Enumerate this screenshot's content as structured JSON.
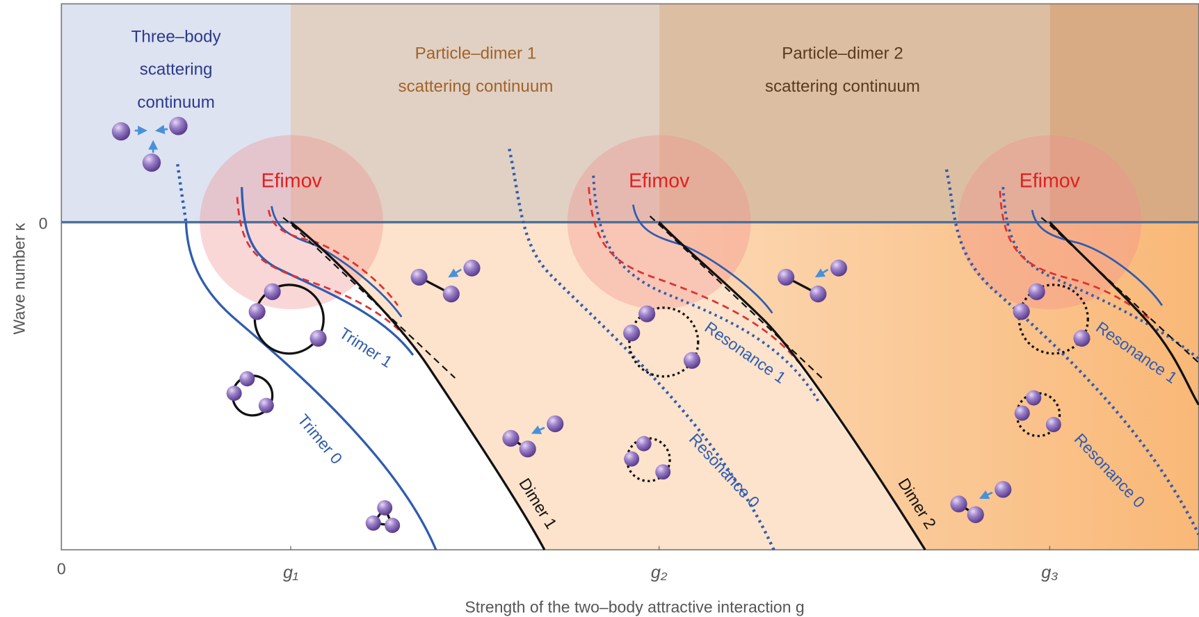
{
  "regions": [
    {
      "lines": [
        "Three–body",
        "scattering",
        "continuum"
      ]
    },
    {
      "lines": [
        "Particle–dimer 1",
        "scattering continuum"
      ]
    },
    {
      "lines": [
        "Particle–dimer 2",
        "scattering continuum"
      ]
    }
  ],
  "efimov_labels": [
    "Efimov",
    "Efimov",
    "Efimov"
  ],
  "curve_labels": {
    "trimer_1": "Trimer 1",
    "trimer_0": "Trimer 0",
    "dimer_1": "Dimer 1",
    "dimer_2": "Dimer 2",
    "resonance_1a": "Resonance 1",
    "resonance_0a": "Resonance 0",
    "resonance_1b": "Resonance 1",
    "resonance_0b": "Resonance 0"
  },
  "axes": {
    "y_title": "Wave number κ",
    "y_zero": "0",
    "x_zero": "0",
    "x_ticks": [
      "g₁",
      "g₂",
      "g₃"
    ],
    "x_title": "Strength of the two–body attractive interaction g"
  }
}
